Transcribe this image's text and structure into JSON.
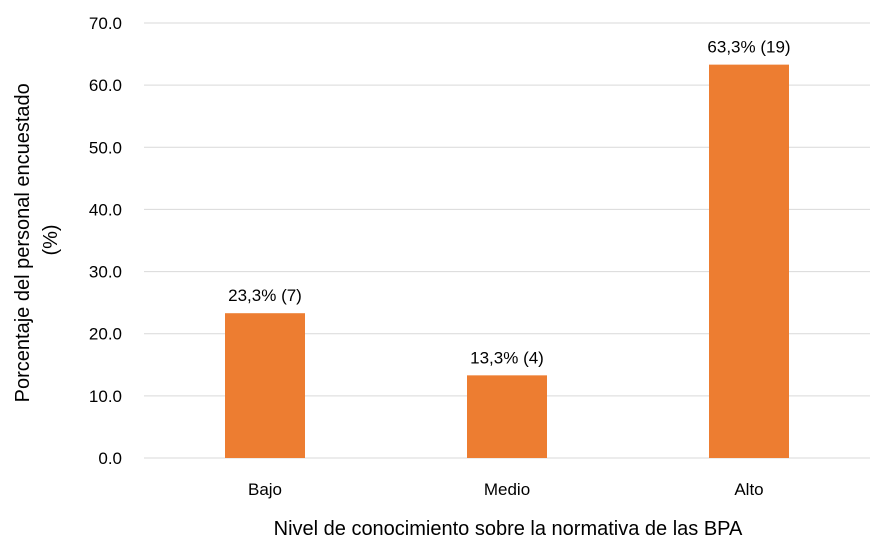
{
  "chart_data": {
    "type": "bar",
    "title": "",
    "categories": [
      "Bajo",
      "Medio",
      "Alto"
    ],
    "values": [
      23.3,
      13.3,
      63.3
    ],
    "data_labels": [
      "23,3% (7)",
      "13,3% (4)",
      "63,3% (19)"
    ],
    "xlabel": "Nivel de conocimiento sobre la normativa de las BPA",
    "ylabel_lines": [
      "Porcentaje del personal encuestado",
      "(%)"
    ],
    "ylim": [
      0,
      70
    ],
    "yticks": [
      0,
      10,
      20,
      30,
      40,
      50,
      60,
      70
    ],
    "ytick_labels": [
      "0.0",
      "10.0",
      "20.0",
      "30.0",
      "40.0",
      "50.0",
      "60.0",
      "70.0"
    ],
    "grid": true,
    "legend": "none",
    "bar_color": "#ED7D31",
    "grid_color": "#D9D9D9"
  }
}
